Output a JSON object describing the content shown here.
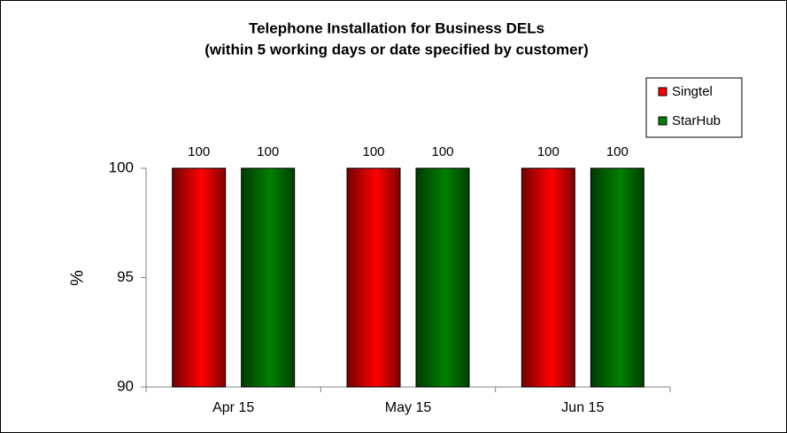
{
  "chart_data": {
    "type": "bar",
    "title": "Telephone Installation for Business DELs",
    "subtitle": "(within 5 working days or date specified by customer)",
    "y_label": "%",
    "categories": [
      "Apr 15",
      "May 15",
      "Jun 15"
    ],
    "series": [
      {
        "name": "Singtel",
        "color": "#ff0000",
        "values": [
          100,
          100,
          100
        ]
      },
      {
        "name": "StarHub",
        "color": "#008000",
        "values": [
          100,
          100,
          100
        ]
      }
    ],
    "ylim": [
      90,
      100
    ],
    "yticks": [
      90,
      95,
      100
    ],
    "grid": false,
    "legend": "upper right"
  }
}
